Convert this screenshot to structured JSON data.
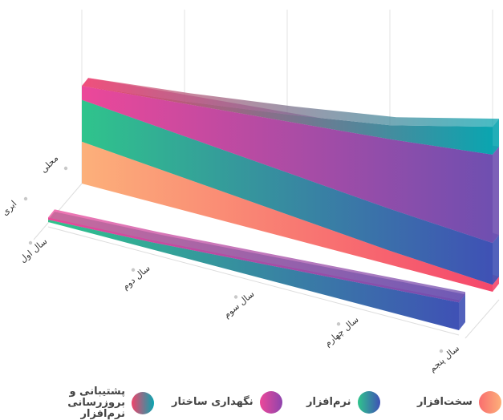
{
  "chart_data": {
    "type": "area",
    "title": "",
    "categories": [
      "سال اول",
      "سال دوم",
      "سال سوم",
      "سال چهارم",
      "سال پنجم"
    ],
    "z_categories": [
      "محلی",
      "ابری"
    ],
    "series_names": [
      "سخت‌افزار",
      "نرم‌افزار",
      "نگهداری ساختار",
      "پشتیبانی و بروزرسانی نرم‌افزار"
    ],
    "series_values": {
      "محلی": {
        "سخت‌افزار": [
          18,
          14,
          10,
          6,
          3
        ],
        "نرم‌افزار": [
          18,
          18,
          18,
          18,
          18
        ],
        "نگهداری ساختار": [
          6,
          14,
          22,
          30,
          38
        ],
        "پشتیبانی و بروزرسانی نرم‌افزار": [
          0,
          1,
          3,
          6,
          12
        ]
      },
      "ابری": {
        "سخت‌افزار": [
          0,
          0,
          0,
          0,
          0
        ],
        "نرم‌افزار": [
          1,
          3,
          6,
          9,
          12
        ],
        "نگهداری ساختار": [
          1,
          1,
          1,
          1,
          1
        ],
        "پشتیبانی و بروزرسانی نرم‌افزار": [
          0,
          0,
          0,
          0,
          0
        ]
      }
    },
    "grid": true,
    "legend_position": "bottom"
  },
  "legend": [
    {
      "label": "سخت‌افزار",
      "color_from": "#f96e6e",
      "color_to": "#fcb07a"
    },
    {
      "label": "نرم‌افزار",
      "color_from": "#2fc48c",
      "color_to": "#3f51b5"
    },
    {
      "label": "نگهداری ساختار",
      "color_from": "#ec4899",
      "color_to": "#8e44ad"
    },
    {
      "label": "پشتیبانی و بروزرسانی نرم‌افزار",
      "color_from": "#f0436a",
      "color_to": "#0aa5b0"
    }
  ]
}
